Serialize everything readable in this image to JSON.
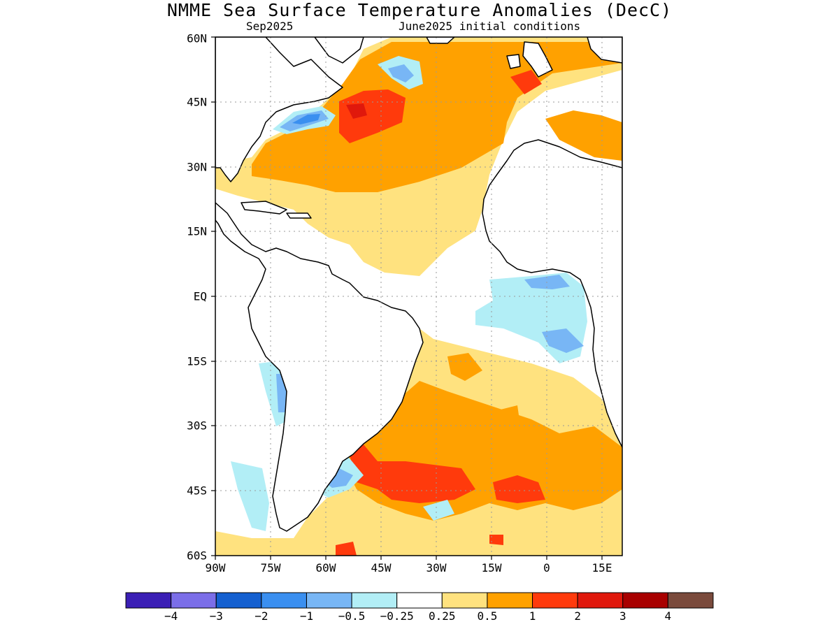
{
  "title": "NMME Sea Surface Temperature Anomalies (DecC)",
  "subtitle_left": "Sep2025",
  "subtitle_right": "June2025 initial conditions",
  "lat_labels": [
    "60N",
    "45N",
    "30N",
    "15N",
    "EQ",
    "15S",
    "30S",
    "45S",
    "60S"
  ],
  "lon_labels": [
    "90W",
    "75W",
    "60W",
    "45W",
    "30W",
    "15W",
    "0",
    "15E"
  ],
  "colorbar": {
    "colors": [
      "#3b1fb5",
      "#7b6ee8",
      "#1560d0",
      "#3a8ff0",
      "#78b6f5",
      "#b2eef6",
      "#ffffff",
      "#ffe27f",
      "#ffa100",
      "#ff3a0c",
      "#e0180c",
      "#a80000",
      "#7a4a3c"
    ],
    "labels": [
      "-4",
      "-3",
      "-2",
      "-1",
      "-0.5",
      "-0.25",
      "0.25",
      "0.5",
      "1",
      "2",
      "3",
      "4"
    ]
  },
  "chart_data": {
    "type": "heatmap",
    "variable": "Sea Surface Temperature Anomalies",
    "units": "DecC",
    "forecast_month": "Sep2025",
    "initial_conditions": "June2025",
    "region": {
      "lon_range": [
        -90,
        20
      ],
      "lat_range": [
        -60,
        60
      ]
    },
    "contour_levels": [
      -4,
      -3,
      -2,
      -1,
      -0.5,
      -0.25,
      0.25,
      0.5,
      1,
      2,
      3,
      4
    ],
    "grid": true
  }
}
